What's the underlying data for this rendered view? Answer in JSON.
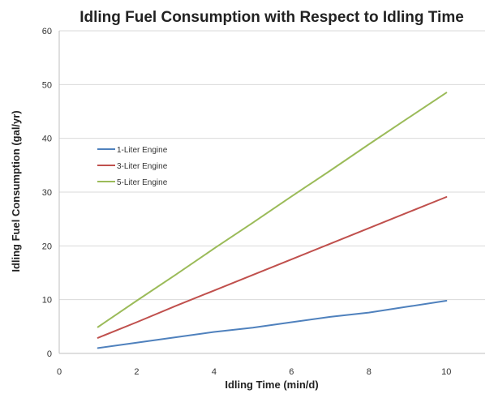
{
  "chart_data": {
    "type": "line",
    "title": "Idling Fuel Consumption with Respect to Idling Time",
    "xlabel": "Idling Time (min/d)",
    "ylabel": "Idling Fuel Consumption (gal/yr)",
    "xlim": [
      0,
      11
    ],
    "ylim": [
      0,
      60
    ],
    "xticks": [
      0,
      2,
      4,
      6,
      8,
      10
    ],
    "yticks": [
      0,
      10,
      20,
      30,
      40,
      50,
      60
    ],
    "grid": "horizontal",
    "legend_position": "upper-left",
    "x": [
      1,
      2,
      3,
      4,
      5,
      6,
      7,
      8,
      9,
      10
    ],
    "series": [
      {
        "name": "1-Liter Engine",
        "color": "#4f81bd",
        "values": [
          1.0,
          2.0,
          3.0,
          4.0,
          4.8,
          5.8,
          6.8,
          7.6,
          8.7,
          9.8
        ]
      },
      {
        "name": "3-Liter Engine",
        "color": "#c0504d",
        "values": [
          2.9,
          5.8,
          8.8,
          11.7,
          14.6,
          17.5,
          20.4,
          23.3,
          26.2,
          29.1
        ]
      },
      {
        "name": "5-Liter Engine",
        "color": "#9bbb59",
        "values": [
          4.9,
          9.8,
          14.6,
          19.5,
          24.3,
          29.2,
          34.0,
          38.9,
          43.7,
          48.5
        ]
      }
    ]
  }
}
